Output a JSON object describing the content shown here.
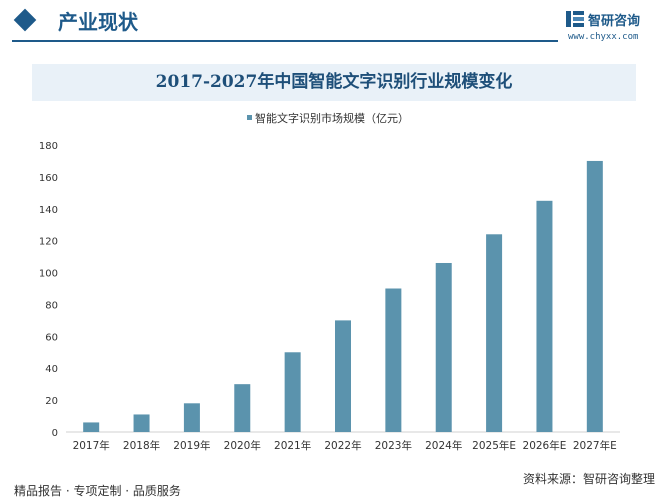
{
  "header": {
    "section_title": "产业现状",
    "logo_text": "智研咨询",
    "logo_url": "www.chyxx.com"
  },
  "colors": {
    "brand": "#1e5a8a",
    "bar": "#5b93ad",
    "title_band": "#e9f1f8"
  },
  "chart_data": {
    "type": "bar",
    "title": "2017-2027年中国智能文字识别行业规模变化",
    "categories": [
      "2017年",
      "2018年",
      "2019年",
      "2020年",
      "2021年",
      "2022年",
      "2023年",
      "2024年",
      "2025年E",
      "2026年E",
      "2027年E"
    ],
    "series": [
      {
        "name": "智能文字识别市场规模（亿元）",
        "values": [
          6,
          11,
          18,
          30,
          50,
          70,
          90,
          106,
          124,
          145,
          170
        ]
      }
    ],
    "ylim": [
      0,
      180
    ],
    "yticks": [
      0,
      20,
      40,
      60,
      80,
      100,
      120,
      140,
      160,
      180
    ],
    "grid": false,
    "legend": "top-left"
  },
  "footer": {
    "left": "精品报告 · 专项定制 · 品质服务",
    "right": "资料来源：智研咨询整理"
  }
}
